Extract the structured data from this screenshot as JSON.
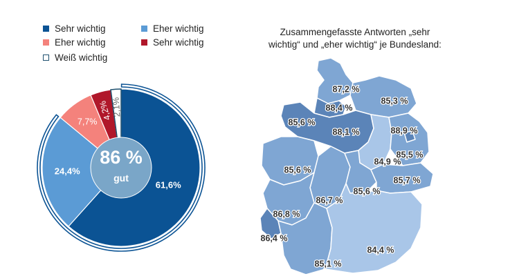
{
  "chart_data": [
    {
      "type": "pie",
      "categories": [
        "Sehr wichtig",
        "Eher wichtig",
        "Eher wichtig",
        "Sehr wichtig",
        "Weiß wichtig"
      ],
      "values": [
        61.6,
        24.4,
        7.7,
        4.2,
        2.1
      ],
      "slice_labels": [
        "61,6%",
        "24,4%",
        "7,7%",
        "4,2%",
        "2,1%"
      ],
      "colors": [
        "#0b5394",
        "#5b9bd5",
        "#f4827c",
        "#b0172a",
        "#ffffff"
      ],
      "center_value": "86 %",
      "center_text": "gut",
      "legend": [
        {
          "label": "Sehr wichtig",
          "color": "#0b5394",
          "outlined": false
        },
        {
          "label": "Eher wichtig",
          "color": "#5b9bd5",
          "outlined": false
        },
        {
          "label": "Eher wichtig",
          "color": "#f4827c",
          "outlined": false
        },
        {
          "label": "Sehr wichtig",
          "color": "#b0172a",
          "outlined": false
        },
        {
          "label": "Weiß wichtig",
          "color": "#ffffff",
          "outlined": true
        }
      ]
    },
    {
      "type": "map",
      "title": "Zusammengefasste Antworten „sehr wichtig“ und „eher wichtig“ je Bundesland:",
      "title_lines": [
        "Zusammengefasste Antworten „sehr",
        "wichtig“ und „eher wichtig“ je Bundesland:"
      ],
      "values": [
        87.2,
        88.4,
        85.3,
        85.6,
        88.1,
        88.9,
        84.9,
        85.5,
        85.6,
        85.7,
        85.6,
        86.7,
        86.8,
        86.4,
        84.4,
        85.1
      ],
      "labels": [
        "87,2 %",
        "88,4 %",
        "85,3 %",
        "85,6 %",
        "88,1 %",
        "88,9 %",
        "84,9 %",
        "85,5 %",
        "85,6 %",
        "85,7 %",
        "85,6 %",
        "86,7 %",
        "86,8 %",
        "86,4 %",
        "84,4 %",
        "85,1 %"
      ],
      "colors": {
        "light": "#a9c6e8",
        "medium": "#7fa6d3",
        "dark": "#5b84b8",
        "border": "#ffffff",
        "label": "#333333"
      }
    }
  ]
}
